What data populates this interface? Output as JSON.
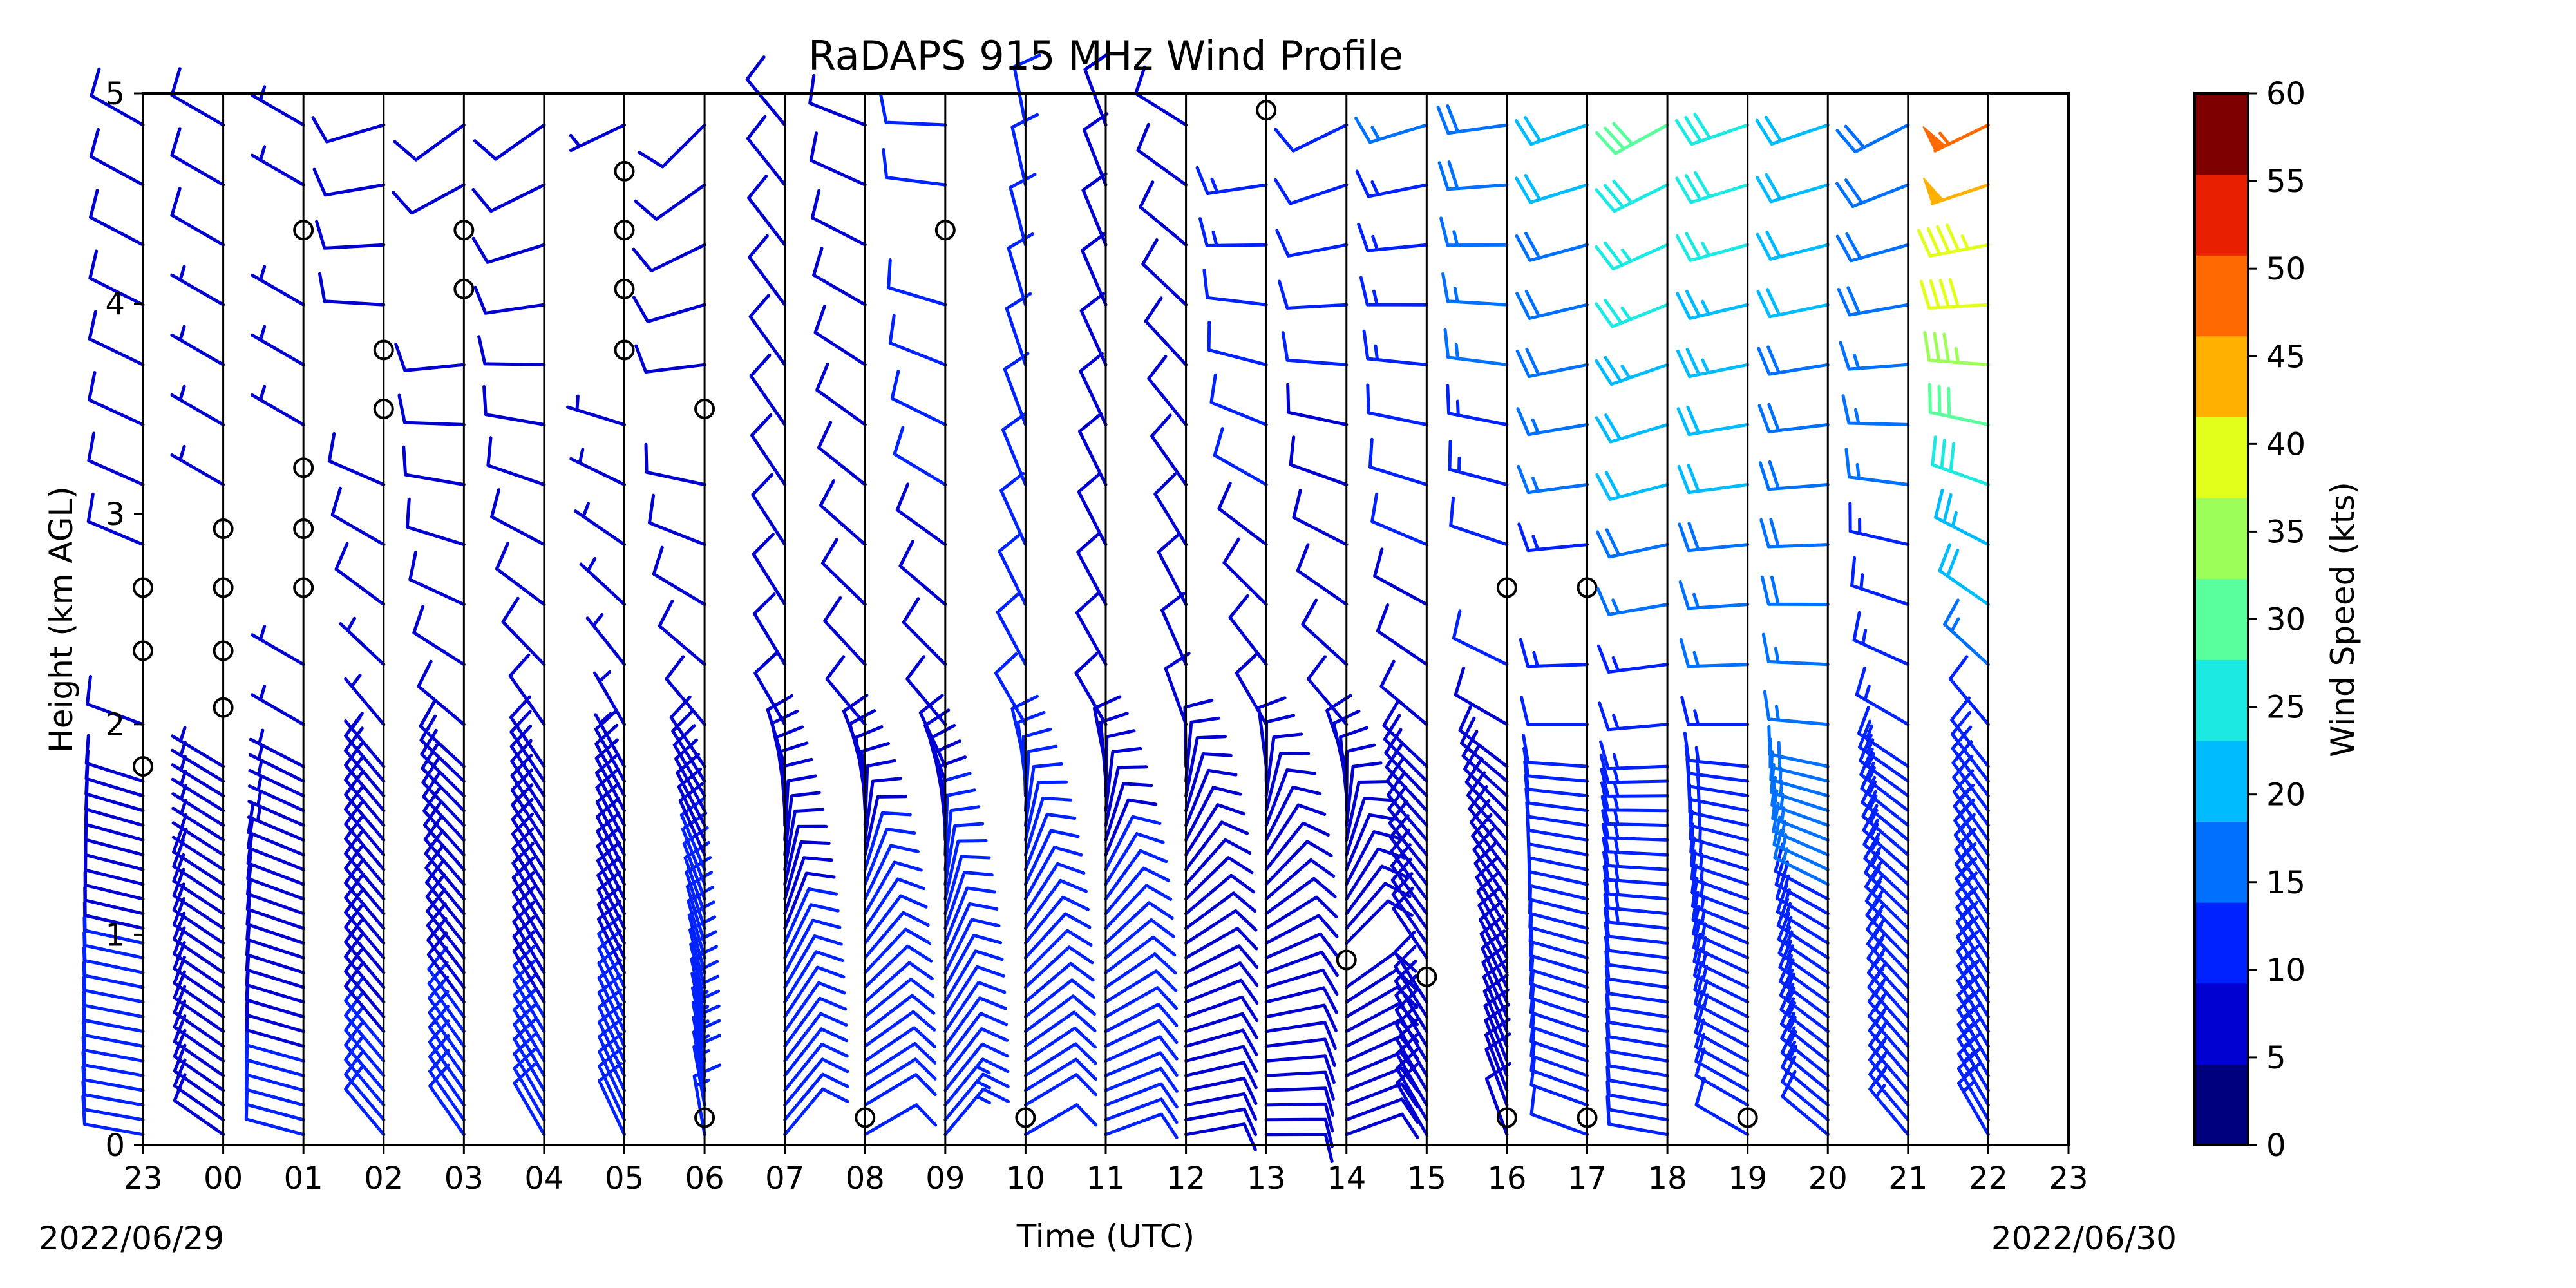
{
  "chart_data": {
    "type": "wind_barb_profile",
    "title": "RaDAPS 915 MHz Wind Profile",
    "xlabel": "Time (UTC)",
    "ylabel": "Height (km AGL)",
    "x_ticks": [
      "23",
      "00",
      "01",
      "02",
      "03",
      "04",
      "05",
      "06",
      "07",
      "08",
      "09",
      "10",
      "11",
      "12",
      "13",
      "14",
      "15",
      "16",
      "17",
      "18",
      "19",
      "20",
      "21",
      "22",
      "23"
    ],
    "y_ticks": [
      "0",
      "1",
      "2",
      "3",
      "4",
      "5"
    ],
    "ylim": [
      0,
      5
    ],
    "start_date_label": "2022/06/29",
    "end_date_label": "2022/06/30",
    "colorbar": {
      "label": "Wind Speed (kts)",
      "ticks": [
        "0",
        "5",
        "10",
        "15",
        "20",
        "25",
        "30",
        "35",
        "40",
        "45",
        "50",
        "55",
        "60"
      ],
      "colors": [
        "#00007f",
        "#0000d0",
        "#0022ff",
        "#0070ff",
        "#00bcff",
        "#1ce9e2",
        "#59ff9c",
        "#9cff59",
        "#e2ff1c",
        "#ffb000",
        "#ff6a00",
        "#e81f00",
        "#7f0000"
      ]
    },
    "profiles": [
      {
        "time": "23",
        "low_dir": 280,
        "low_kts": 12,
        "mid_dir": 290,
        "mid_kts": 8,
        "high_dir": 300,
        "high_kts": 9,
        "calm_heights": [
          1.8,
          2.35,
          2.65
        ]
      },
      {
        "time": "00",
        "low_dir": 305,
        "low_kts": 10,
        "mid_dir": 300,
        "mid_kts": 6,
        "high_dir": 300,
        "high_kts": 8,
        "calm_heights": [
          2.08,
          2.35,
          2.65,
          2.93
        ]
      },
      {
        "time": "01",
        "low_dir": 285,
        "low_kts": 11,
        "mid_dir": 300,
        "mid_kts": 6,
        "high_dir": 300,
        "high_kts": 5,
        "calm_heights": [
          2.65,
          2.93,
          3.22,
          4.35
        ]
      },
      {
        "time": "02",
        "low_dir": 320,
        "low_kts": 11,
        "mid_dir": 320,
        "mid_kts": 7,
        "high_dir": 250,
        "high_kts": 10,
        "calm_heights": [
          3.5,
          3.78
        ]
      },
      {
        "time": "03",
        "low_dir": 325,
        "low_kts": 11,
        "mid_dir": 310,
        "mid_kts": 8,
        "high_dir": 230,
        "high_kts": 8,
        "calm_heights": [
          4.07,
          4.35
        ]
      },
      {
        "time": "04",
        "low_dir": 330,
        "low_kts": 11,
        "mid_dir": 325,
        "mid_kts": 8,
        "high_dir": 230,
        "high_kts": 9,
        "calm_heights": []
      },
      {
        "time": "05",
        "low_dir": 335,
        "low_kts": 12,
        "mid_dir": 330,
        "mid_kts": 7,
        "high_dir": 240,
        "high_kts": 7,
        "calm_heights": [
          3.78,
          4.07,
          4.35,
          4.63
        ]
      },
      {
        "time": "06",
        "low_dir": 350,
        "low_kts": 14,
        "mid_dir": 320,
        "mid_kts": 8,
        "high_dir": 220,
        "high_kts": 9,
        "calm_heights": [
          0.13,
          3.5
        ]
      },
      {
        "time": "07",
        "low_dir": 40,
        "low_kts": 11,
        "mid_dir": 330,
        "mid_kts": 9,
        "high_dir": 320,
        "high_kts": 10,
        "calm_heights": []
      },
      {
        "time": "08",
        "low_dir": 60,
        "low_kts": 12,
        "mid_dir": 320,
        "mid_kts": 9,
        "high_dir": 290,
        "high_kts": 10,
        "calm_heights": [
          0.13
        ]
      },
      {
        "time": "09",
        "low_dir": 40,
        "low_kts": 13,
        "mid_dir": 320,
        "mid_kts": 9,
        "high_dir": 270,
        "high_kts": 12,
        "calm_heights": [
          4.35
        ]
      },
      {
        "time": "10",
        "low_dir": 60,
        "low_kts": 12,
        "mid_dir": 330,
        "mid_kts": 10,
        "high_dir": 350,
        "high_kts": 10,
        "calm_heights": [
          0.13
        ]
      },
      {
        "time": "11",
        "low_dir": 70,
        "low_kts": 12,
        "mid_dir": 330,
        "mid_kts": 9,
        "high_dir": 340,
        "high_kts": 10,
        "calm_heights": []
      },
      {
        "time": "12",
        "low_dir": 80,
        "low_kts": 10,
        "mid_dir": 340,
        "mid_kts": 9,
        "high_dir": 300,
        "high_kts": 9,
        "calm_heights": []
      },
      {
        "time": "13",
        "low_dir": 90,
        "low_kts": 9,
        "mid_dir": 330,
        "mid_kts": 8,
        "high_dir": 250,
        "high_kts": 14,
        "calm_heights": [
          4.92
        ]
      },
      {
        "time": "14",
        "low_dir": 70,
        "low_kts": 10,
        "mid_dir": 320,
        "mid_kts": 8,
        "high_dir": 240,
        "high_kts": 12,
        "calm_heights": [
          0.88
        ]
      },
      {
        "time": "15",
        "low_dir": 330,
        "low_kts": 9,
        "mid_dir": 310,
        "mid_kts": 8,
        "high_dir": 250,
        "high_kts": 16,
        "calm_heights": [
          0.8
        ]
      },
      {
        "time": "16",
        "low_dir": 340,
        "low_kts": 9,
        "mid_dir": 300,
        "mid_kts": 9,
        "high_dir": 260,
        "high_kts": 20,
        "calm_heights": [
          0.13,
          2.65
        ]
      },
      {
        "time": "17",
        "low_dir": 290,
        "low_kts": 11,
        "mid_dir": 270,
        "mid_kts": 12,
        "high_dir": 250,
        "high_kts": 22,
        "calm_heights": [
          0.13,
          2.65
        ]
      },
      {
        "time": "18",
        "low_dir": 280,
        "low_kts": 12,
        "mid_dir": 265,
        "mid_kts": 13,
        "high_dir": 240,
        "high_kts": 32,
        "calm_heights": []
      },
      {
        "time": "19",
        "low_dir": 300,
        "low_kts": 12,
        "mid_dir": 270,
        "mid_kts": 14,
        "high_dir": 250,
        "high_kts": 30,
        "calm_heights": [
          0.13
        ]
      },
      {
        "time": "20",
        "low_dir": 310,
        "low_kts": 12,
        "mid_dir": 275,
        "mid_kts": 17,
        "high_dir": 250,
        "high_kts": 22,
        "calm_heights": []
      },
      {
        "time": "21",
        "low_dir": 320,
        "low_kts": 13,
        "mid_dir": 300,
        "mid_kts": 13,
        "high_dir": 240,
        "high_kts": 20,
        "calm_heights": []
      },
      {
        "time": "22",
        "low_dir": 330,
        "low_kts": 14,
        "mid_dir": 320,
        "mid_kts": 12,
        "high_dir": 240,
        "high_kts": 55,
        "calm_heights": []
      }
    ]
  }
}
